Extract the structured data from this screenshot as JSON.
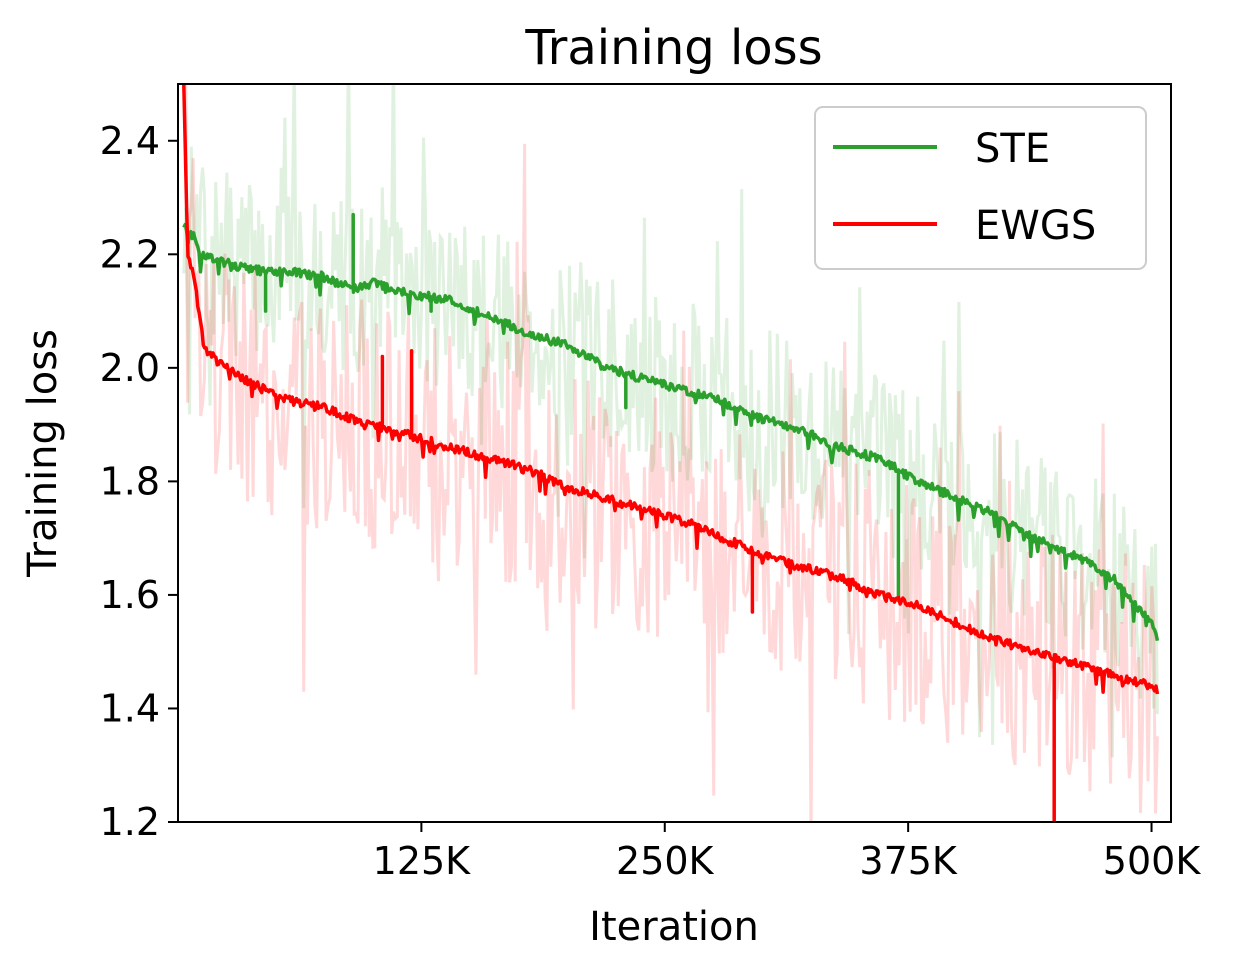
{
  "chart_data": {
    "type": "line",
    "title": "Training loss",
    "xlabel": "Iteration",
    "ylabel": "Training loss",
    "xlim": [
      0,
      510000
    ],
    "ylim": [
      1.2,
      2.5
    ],
    "x_ticks": [
      125000,
      250000,
      375000,
      500000
    ],
    "x_tick_labels": [
      "125K",
      "250K",
      "375K",
      "500K"
    ],
    "y_ticks": [
      1.2,
      1.4,
      1.6,
      1.8,
      2.0,
      2.2,
      2.4
    ],
    "y_tick_labels": [
      "1.2",
      "1.4",
      "1.6",
      "1.8",
      "2.0",
      "2.2",
      "2.4"
    ],
    "grid": false,
    "legend": {
      "position": "top-right",
      "entries": [
        "STE",
        "EWGS"
      ]
    },
    "raw_band_alpha": 0.15,
    "series": [
      {
        "name": "STE",
        "color": "#2ca02c",
        "light_color": "#2ca02c",
        "smoothed": {
          "x": [
            3000,
            8000,
            12000,
            20000,
            30000,
            45000,
            60000,
            75000,
            90000,
            100000,
            120000,
            140000,
            160000,
            180000,
            200000,
            220000,
            240000,
            260000,
            280000,
            300000,
            320000,
            340000,
            360000,
            370000,
            380000,
            400000,
            420000,
            440000,
            460000,
            480000,
            490000,
            500000,
            503000
          ],
          "y": [
            2.25,
            2.23,
            2.2,
            2.19,
            2.18,
            2.17,
            2.17,
            2.16,
            2.14,
            2.15,
            2.13,
            2.12,
            2.09,
            2.06,
            2.04,
            2.0,
            1.98,
            1.96,
            1.94,
            1.91,
            1.89,
            1.86,
            1.84,
            1.82,
            1.8,
            1.77,
            1.74,
            1.7,
            1.67,
            1.63,
            1.59,
            1.55,
            1.52
          ]
        },
        "spikes": [
          {
            "x": 45000,
            "y": 2.1
          },
          {
            "x": 90000,
            "y": 2.27
          },
          {
            "x": 130000,
            "y": 2.1
          },
          {
            "x": 230000,
            "y": 1.93
          },
          {
            "x": 370000,
            "y": 1.59
          }
        ],
        "raw_spread": 0.16,
        "raw_seed": 7
      },
      {
        "name": "EWGS",
        "color": "#ff0000",
        "light_color": "#ff0000",
        "smoothed": {
          "x": [
            3000,
            5000,
            8000,
            10000,
            13000,
            20000,
            30000,
            45000,
            60000,
            75000,
            90000,
            100000,
            120000,
            140000,
            160000,
            180000,
            200000,
            220000,
            240000,
            260000,
            280000,
            300000,
            320000,
            340000,
            360000,
            380000,
            400000,
            420000,
            440000,
            460000,
            480000,
            500000,
            503000
          ],
          "y": [
            2.5,
            2.2,
            2.16,
            2.12,
            2.04,
            2.01,
            1.99,
            1.96,
            1.94,
            1.93,
            1.91,
            1.9,
            1.88,
            1.86,
            1.84,
            1.82,
            1.79,
            1.77,
            1.75,
            1.73,
            1.7,
            1.67,
            1.65,
            1.63,
            1.6,
            1.58,
            1.55,
            1.52,
            1.5,
            1.48,
            1.46,
            1.44,
            1.43
          ]
        },
        "spikes": [
          {
            "x": 105000,
            "y": 2.02
          },
          {
            "x": 120000,
            "y": 2.03
          },
          {
            "x": 295000,
            "y": 1.57
          },
          {
            "x": 450000,
            "y": 1.2
          }
        ],
        "raw_spread": 0.22,
        "raw_seed": 19
      }
    ]
  }
}
